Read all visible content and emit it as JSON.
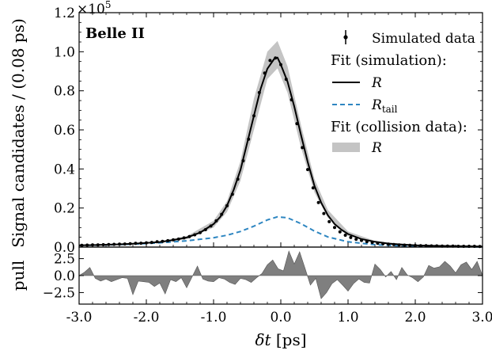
{
  "chart_data": [
    {
      "type": "line",
      "panel": "main",
      "experiment_label": "Belle II",
      "ylabel": "Signal candidates / (0.08 ps)",
      "y_multiplier_label": "×10",
      "y_multiplier_exponent": "5",
      "ylim": [
        0,
        1.2
      ],
      "xlim": [
        -3.0,
        3.0
      ],
      "y_ticks": [
        "0.0",
        "0.2",
        "0.4",
        "0.6",
        "0.8",
        "1.0",
        "1.2"
      ],
      "legend_location": "top-right",
      "legend": {
        "simulated_label": "Simulated data",
        "fit_sim_header": "Fit (simulation):",
        "r_label": "R",
        "rtail_main": "R",
        "rtail_sub": "tail",
        "fit_data_header": "Fit (collision data):",
        "r_band_label": "R"
      },
      "colors": {
        "fit_line": "#000000",
        "tail_line": "#2e86c1",
        "band": "#c4c4c4",
        "pull_fill": "#7f7f7f"
      },
      "series": [
        {
          "name": "Simulated data",
          "style": "points",
          "x": [
            -2.96,
            -2.88,
            -2.8,
            -2.72,
            -2.64,
            -2.56,
            -2.48,
            -2.4,
            -2.32,
            -2.24,
            -2.16,
            -2.08,
            -2.0,
            -1.92,
            -1.84,
            -1.76,
            -1.68,
            -1.6,
            -1.52,
            -1.44,
            -1.36,
            -1.28,
            -1.2,
            -1.12,
            -1.04,
            -0.96,
            -0.88,
            -0.8,
            -0.72,
            -0.64,
            -0.56,
            -0.48,
            -0.4,
            -0.32,
            -0.24,
            -0.16,
            -0.08,
            0.0,
            0.08,
            0.16,
            0.24,
            0.32,
            0.4,
            0.48,
            0.56,
            0.64,
            0.72,
            0.8,
            0.88,
            0.96,
            1.04,
            1.12,
            1.2,
            1.28,
            1.36,
            1.44,
            1.52,
            1.6,
            1.68,
            1.76,
            1.84,
            1.92,
            2.0,
            2.08,
            2.16,
            2.24,
            2.32,
            2.4,
            2.48,
            2.56,
            2.64,
            2.72,
            2.8,
            2.88,
            2.96
          ],
          "y": [
            0.009,
            0.01,
            0.011,
            0.011,
            0.012,
            0.013,
            0.014,
            0.015,
            0.016,
            0.017,
            0.019,
            0.02,
            0.022,
            0.024,
            0.027,
            0.029,
            0.033,
            0.037,
            0.041,
            0.047,
            0.054,
            0.063,
            0.074,
            0.089,
            0.108,
            0.134,
            0.168,
            0.212,
            0.271,
            0.348,
            0.442,
            0.552,
            0.672,
            0.791,
            0.891,
            0.955,
            0.968,
            0.934,
            0.859,
            0.754,
            0.632,
            0.509,
            0.397,
            0.303,
            0.228,
            0.172,
            0.13,
            0.1,
            0.078,
            0.061,
            0.049,
            0.04,
            0.034,
            0.028,
            0.024,
            0.02,
            0.017,
            0.015,
            0.013,
            0.011,
            0.01,
            0.009,
            0.008,
            0.007,
            0.007,
            0.006,
            0.006,
            0.005,
            0.005,
            0.005,
            0.004,
            0.004,
            0.004,
            0.004,
            0.003
          ]
        },
        {
          "name": "R",
          "style": "line",
          "x": [
            -3.0,
            -2.8,
            -2.6,
            -2.4,
            -2.2,
            -2.0,
            -1.8,
            -1.6,
            -1.4,
            -1.2,
            -1.0,
            -0.9,
            -0.8,
            -0.7,
            -0.6,
            -0.5,
            -0.4,
            -0.3,
            -0.2,
            -0.1,
            -0.05,
            0.0,
            0.1,
            0.2,
            0.3,
            0.4,
            0.5,
            0.6,
            0.7,
            0.8,
            0.9,
            1.0,
            1.2,
            1.4,
            1.6,
            1.8,
            2.0,
            2.2,
            2.4,
            2.6,
            2.8,
            3.0
          ],
          "y": [
            0.009,
            0.01,
            0.012,
            0.014,
            0.017,
            0.021,
            0.026,
            0.036,
            0.049,
            0.074,
            0.118,
            0.155,
            0.212,
            0.294,
            0.395,
            0.533,
            0.672,
            0.81,
            0.913,
            0.963,
            0.97,
            0.934,
            0.847,
            0.72,
            0.574,
            0.436,
            0.314,
            0.228,
            0.163,
            0.118,
            0.089,
            0.067,
            0.041,
            0.027,
            0.018,
            0.013,
            0.009,
            0.007,
            0.006,
            0.005,
            0.004,
            0.003
          ]
        },
        {
          "name": "R_tail",
          "style": "dashed",
          "x": [
            -3.0,
            -2.6,
            -2.2,
            -1.8,
            -1.4,
            -1.0,
            -0.8,
            -0.6,
            -0.4,
            -0.2,
            -0.05,
            0.1,
            0.3,
            0.5,
            0.7,
            1.0,
            1.4,
            1.8,
            2.2,
            2.6,
            3.0
          ],
          "y": [
            0.008,
            0.011,
            0.015,
            0.022,
            0.032,
            0.048,
            0.061,
            0.08,
            0.107,
            0.139,
            0.155,
            0.15,
            0.12,
            0.082,
            0.052,
            0.027,
            0.012,
            0.006,
            0.003,
            0.002,
            0.001
          ]
        },
        {
          "name": "R (collision data band)",
          "style": "band",
          "x": [
            -3.0,
            -2.6,
            -2.2,
            -1.8,
            -1.4,
            -1.0,
            -0.8,
            -0.6,
            -0.4,
            -0.2,
            -0.05,
            0.1,
            0.3,
            0.5,
            0.7,
            1.0,
            1.4,
            1.8,
            2.2,
            2.6,
            3.0
          ],
          "y_low": [
            0.008,
            0.01,
            0.015,
            0.023,
            0.04,
            0.1,
            0.18,
            0.34,
            0.6,
            0.86,
            0.915,
            0.79,
            0.51,
            0.28,
            0.15,
            0.058,
            0.025,
            0.012,
            0.006,
            0.004,
            0.003
          ],
          "y_high": [
            0.01,
            0.013,
            0.019,
            0.03,
            0.055,
            0.135,
            0.235,
            0.44,
            0.76,
            1.0,
            1.055,
            0.925,
            0.625,
            0.35,
            0.19,
            0.08,
            0.032,
            0.016,
            0.009,
            0.006,
            0.004
          ]
        }
      ]
    },
    {
      "type": "area",
      "panel": "pull",
      "ylabel": "pull",
      "xlabel_main": "δt",
      "xlabel_unit": " [ps]",
      "xlim": [
        -3.0,
        3.0
      ],
      "ylim": [
        -4.2,
        4.2
      ],
      "x_ticks": [
        "-3.0",
        "-2.0",
        "-1.0",
        "0.0",
        "1.0",
        "2.0",
        "3.0"
      ],
      "y_ticks": [
        "2.5",
        "0.0",
        "−2.5"
      ],
      "x": [
        -3.0,
        -2.92,
        -2.84,
        -2.76,
        -2.68,
        -2.6,
        -2.52,
        -2.44,
        -2.36,
        -2.28,
        -2.2,
        -2.12,
        -2.04,
        -1.96,
        -1.88,
        -1.8,
        -1.72,
        -1.64,
        -1.56,
        -1.48,
        -1.4,
        -1.32,
        -1.24,
        -1.16,
        -1.08,
        -1.0,
        -0.92,
        -0.84,
        -0.76,
        -0.68,
        -0.6,
        -0.52,
        -0.44,
        -0.36,
        -0.28,
        -0.2,
        -0.12,
        -0.04,
        0.04,
        0.12,
        0.2,
        0.28,
        0.36,
        0.44,
        0.52,
        0.6,
        0.68,
        0.76,
        0.84,
        0.92,
        1.0,
        1.08,
        1.16,
        1.24,
        1.32,
        1.4,
        1.48,
        1.56,
        1.64,
        1.72,
        1.8,
        1.88,
        1.96,
        2.04,
        2.12,
        2.2,
        2.28,
        2.36,
        2.44,
        2.52,
        2.6,
        2.68,
        2.76,
        2.84,
        2.92,
        3.0
      ],
      "y": [
        0.0,
        0.5,
        1.2,
        -0.4,
        -0.8,
        -0.5,
        -0.9,
        -0.6,
        -0.3,
        -0.4,
        -2.8,
        -0.8,
        -0.9,
        -1.0,
        -1.6,
        -1.1,
        -2.7,
        -0.6,
        -0.9,
        -0.3,
        -1.8,
        -0.2,
        1.4,
        -0.5,
        -0.8,
        -0.9,
        -0.3,
        -0.5,
        -1.0,
        -1.3,
        -0.4,
        -0.6,
        -1.0,
        -0.3,
        0.3,
        1.6,
        2.3,
        1.0,
        0.7,
        3.6,
        1.7,
        3.5,
        1.1,
        -1.4,
        -0.4,
        -3.4,
        -2.5,
        -1.2,
        -0.6,
        -1.4,
        -2.3,
        -1.2,
        -0.5,
        -1.0,
        -1.1,
        1.7,
        0.9,
        -0.2,
        0.6,
        -0.6,
        1.2,
        0.1,
        -0.3,
        -0.9,
        -0.2,
        1.5,
        1.1,
        1.3,
        2.1,
        1.4,
        0.4,
        1.6,
        2.0,
        0.9,
        2.1,
        0.0
      ]
    }
  ]
}
